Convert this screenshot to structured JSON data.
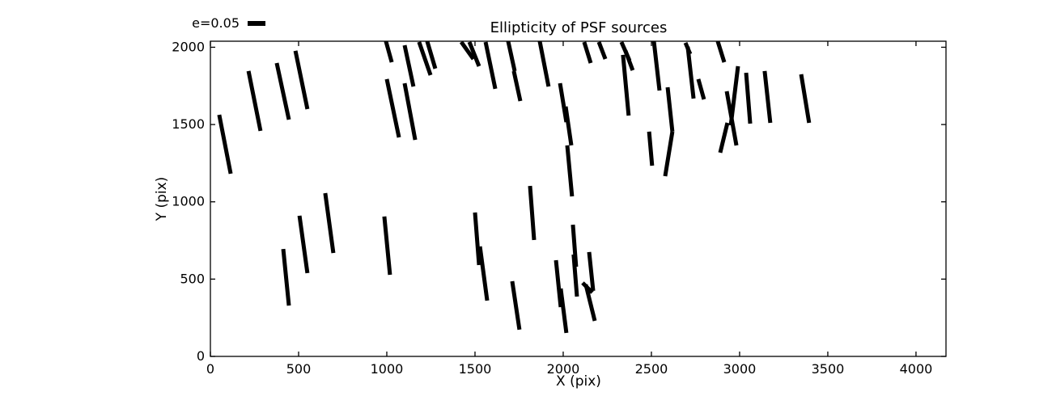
{
  "figure": {
    "background": "#ffffff",
    "frame_color": "#000000"
  },
  "legend": {
    "label": "e=0.05",
    "marker": "thick-horizontal-bar",
    "position": "above-axes-top-left"
  },
  "chart_data": {
    "type": "scatter",
    "style": "whisker-ellipticity-map",
    "title": "Ellipticity of PSF sources",
    "xlabel": "X (pix)",
    "ylabel": "Y (pix)",
    "xlim": [
      0,
      4170
    ],
    "ylim": [
      0,
      2039
    ],
    "xticks": [
      0,
      500,
      1000,
      1500,
      2000,
      2500,
      3000,
      3500,
      4000
    ],
    "yticks": [
      0,
      500,
      1000,
      1500,
      2000
    ],
    "grid": false,
    "tick_direction": "in",
    "legend_label": "e=0.05",
    "legend_scale_e": 0.05,
    "colors": {
      "whisker": "#000000",
      "background": "#ffffff",
      "axes": "#000000"
    },
    "whisker_stroke_px": 5,
    "segments": [
      [
        50,
        1563,
        115,
        1182
      ],
      [
        216,
        1846,
        284,
        1459
      ],
      [
        376,
        1898,
        445,
        1532
      ],
      [
        482,
        1977,
        550,
        1600
      ],
      [
        995,
        2039,
        1028,
        1903
      ],
      [
        1101,
        2013,
        1151,
        1746
      ],
      [
        1000,
        1794,
        1069,
        1417
      ],
      [
        1101,
        1767,
        1161,
        1401
      ],
      [
        1183,
        2034,
        1248,
        1820
      ],
      [
        1229,
        2039,
        1275,
        1862
      ],
      [
        1422,
        2034,
        1491,
        1924
      ],
      [
        1468,
        2034,
        1523,
        1877
      ],
      [
        1560,
        2034,
        1615,
        1731
      ],
      [
        1688,
        2039,
        1725,
        1846
      ],
      [
        1720,
        1846,
        1757,
        1652
      ],
      [
        1867,
        2039,
        1917,
        1746
      ],
      [
        1982,
        1767,
        2018,
        1516
      ],
      [
        2014,
        1616,
        2046,
        1365
      ],
      [
        2023,
        1365,
        2050,
        1035
      ],
      [
        2119,
        2034,
        2156,
        1898
      ],
      [
        2202,
        2034,
        2239,
        1924
      ],
      [
        2330,
        2034,
        2376,
        1914
      ],
      [
        2353,
        1977,
        2394,
        1851
      ],
      [
        2339,
        1951,
        2371,
        1558
      ],
      [
        2514,
        2039,
        2546,
        1720
      ],
      [
        2592,
        1741,
        2619,
        1454
      ],
      [
        2619,
        1454,
        2578,
        1166
      ],
      [
        2693,
        2029,
        2720,
        1956
      ],
      [
        2706,
        2003,
        2739,
        1668
      ],
      [
        2766,
        1794,
        2798,
        1663
      ],
      [
        2876,
        2039,
        2913,
        1903
      ],
      [
        2927,
        1715,
        2982,
        1365
      ],
      [
        2991,
        1877,
        2950,
        1495
      ],
      [
        2931,
        1511,
        2890,
        1318
      ],
      [
        3037,
        1835,
        3060,
        1506
      ],
      [
        3142,
        1846,
        3174,
        1511
      ],
      [
        3349,
        1825,
        3394,
        1511
      ],
      [
        1812,
        1103,
        1835,
        753
      ],
      [
        2487,
        1454,
        2504,
        1234
      ],
      [
        505,
        910,
        550,
        539
      ],
      [
        651,
        1056,
        697,
        669
      ],
      [
        413,
        695,
        445,
        329
      ],
      [
        986,
        905,
        1018,
        528
      ],
      [
        1500,
        931,
        1523,
        591
      ],
      [
        1528,
        711,
        1569,
        361
      ],
      [
        1711,
        486,
        1752,
        173
      ],
      [
        1959,
        622,
        1986,
        319
      ],
      [
        1986,
        439,
        2018,
        152
      ],
      [
        2055,
        852,
        2073,
        580
      ],
      [
        2059,
        659,
        2078,
        387
      ],
      [
        2147,
        675,
        2170,
        424
      ],
      [
        2128,
        465,
        2179,
        230
      ],
      [
        2110,
        476,
        2165,
        413
      ]
    ]
  }
}
